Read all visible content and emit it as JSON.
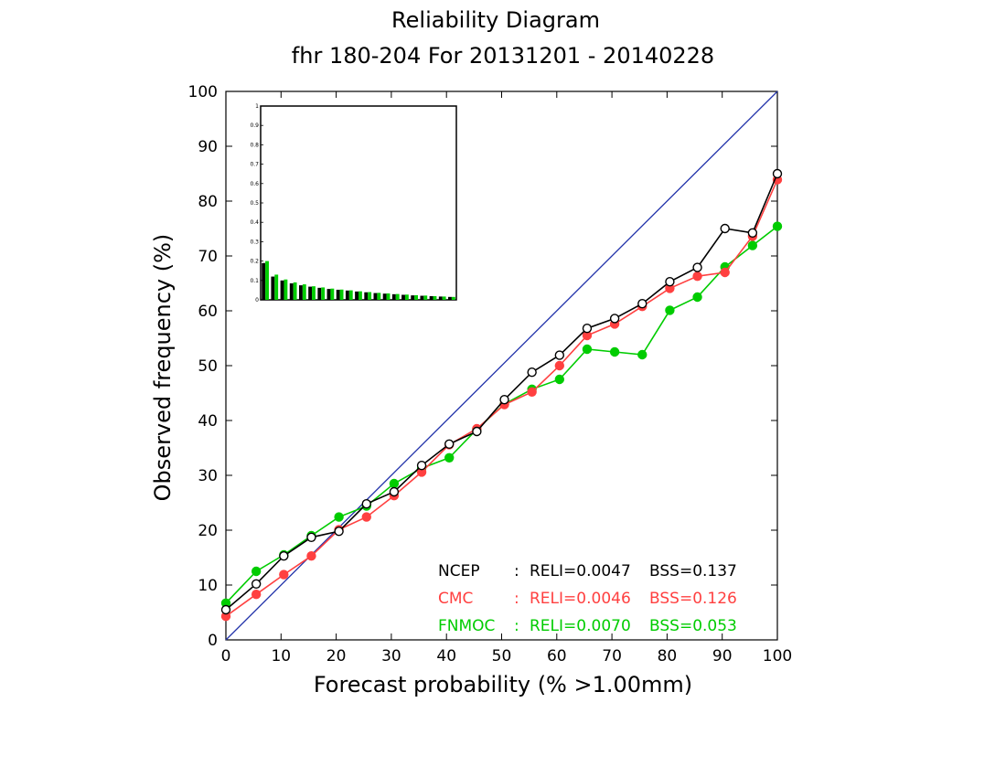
{
  "chart_data": {
    "type": "line",
    "title": "Reliability Diagram",
    "subtitle": "fhr 180-204 For 20131201 - 20140228",
    "xlabel": "Forecast probability (% >1.00mm)",
    "ylabel": "Observed frequency (%)",
    "xlim": [
      0,
      100
    ],
    "ylim": [
      0,
      100
    ],
    "xticks": [
      "0",
      "10",
      "20",
      "30",
      "40",
      "50",
      "60",
      "70",
      "80",
      "90",
      "100"
    ],
    "yticks": [
      "0",
      "10",
      "20",
      "30",
      "40",
      "50",
      "60",
      "70",
      "80",
      "90",
      "100"
    ],
    "reference_line": "diagonal",
    "x": [
      0,
      5.5,
      10.5,
      15.5,
      20.5,
      25.5,
      30.5,
      35.5,
      40.5,
      45.5,
      50.5,
      55.5,
      60.5,
      65.5,
      70.5,
      75.5,
      80.5,
      85.5,
      90.5,
      95.5,
      100
    ],
    "series": [
      {
        "name": "NCEP",
        "color": "#000000",
        "marker": "open-circle",
        "values": [
          5.5,
          10.2,
          15.3,
          18.7,
          19.8,
          24.8,
          27.0,
          31.8,
          35.7,
          38.0,
          43.8,
          48.8,
          51.9,
          56.8,
          58.6,
          61.3,
          65.3,
          67.9,
          75.0,
          74.2,
          85.0
        ]
      },
      {
        "name": "CMC",
        "color": "#ff4040",
        "marker": "filled-circle",
        "values": [
          4.3,
          8.3,
          11.9,
          15.3,
          20.1,
          22.4,
          26.3,
          30.6,
          35.6,
          38.5,
          42.9,
          45.2,
          50.0,
          55.5,
          57.6,
          60.8,
          64.1,
          66.3,
          67.0,
          73.6,
          83.9
        ]
      },
      {
        "name": "FNMOC",
        "color": "#00cc00",
        "marker": "filled-circle",
        "values": [
          6.7,
          12.5,
          15.5,
          19.0,
          22.4,
          24.4,
          28.5,
          31.3,
          33.2,
          38.4,
          43.0,
          45.7,
          47.5,
          53.0,
          52.5,
          52.0,
          60.1,
          62.5,
          68.0,
          71.9,
          75.4
        ]
      }
    ],
    "stats": [
      {
        "model": "NCEP",
        "sep": ":",
        "reli": "RELI=0.0047",
        "bss": "BSS=0.137",
        "color": "#000000"
      },
      {
        "model": "CMC",
        "sep": ":",
        "reli": "RELI=0.0046",
        "bss": "BSS=0.126",
        "color": "#ff4040"
      },
      {
        "model": "FNMOC",
        "sep": ":",
        "reli": "RELI=0.0070",
        "bss": "BSS=0.053",
        "color": "#00cc00"
      }
    ],
    "legend_position": "bottom-right",
    "diagonal_color": "#2233aa",
    "inset": {
      "type": "bar",
      "ylim": [
        0,
        1
      ],
      "yticks": [
        "0",
        "0.1",
        "0.2",
        "0.3",
        "0.4",
        "0.5",
        "0.6",
        "0.7",
        "0.8",
        "0.9",
        "1"
      ],
      "series": [
        {
          "name": "NCEP",
          "color": "#000000",
          "values": [
            0.19,
            0.12,
            0.1,
            0.085,
            0.075,
            0.068,
            0.062,
            0.056,
            0.052,
            0.048,
            0.043,
            0.039,
            0.035,
            0.032,
            0.029,
            0.026,
            0.023,
            0.021,
            0.019,
            0.017,
            0.015
          ]
        },
        {
          "name": "FNMOC",
          "color": "#00cc00",
          "values": [
            0.2,
            0.13,
            0.105,
            0.09,
            0.08,
            0.07,
            0.064,
            0.058,
            0.053,
            0.049,
            0.044,
            0.04,
            0.036,
            0.033,
            0.03,
            0.027,
            0.024,
            0.022,
            0.019,
            0.017,
            0.015
          ]
        }
      ]
    }
  }
}
